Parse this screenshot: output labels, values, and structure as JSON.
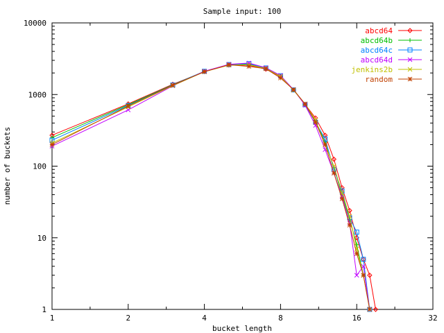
{
  "chart_data": {
    "type": "line",
    "title": "Sample input: 100",
    "xlabel": "bucket length",
    "ylabel": "number of buckets",
    "xscale": "log2",
    "yscale": "log10",
    "xlim": [
      1,
      32
    ],
    "ylim": [
      1,
      10000
    ],
    "xticks": [
      1,
      2,
      4,
      8,
      16,
      32
    ],
    "yticks": [
      1,
      10,
      100,
      1000,
      10000
    ],
    "grid": false,
    "legend_position": "top-right",
    "series": [
      {
        "name": "abcd64",
        "color": "#ff0000",
        "marker": "diamond",
        "x": [
          1,
          2,
          3,
          4,
          5,
          6,
          7,
          8,
          9,
          10,
          11,
          12,
          13,
          14,
          15,
          16,
          17,
          18,
          19
        ],
        "y": [
          270,
          740,
          1390,
          2090,
          2580,
          2560,
          2260,
          1780,
          1160,
          730,
          470,
          270,
          125,
          50,
          24,
          10,
          5,
          3,
          1
        ]
      },
      {
        "name": "abcd64b",
        "color": "#00c000",
        "marker": "plus",
        "x": [
          1,
          2,
          3,
          4,
          5,
          6,
          7,
          8,
          9,
          10,
          11,
          12,
          13,
          14,
          15,
          16,
          17
        ],
        "y": [
          250,
          720,
          1370,
          2100,
          2600,
          2630,
          2320,
          1800,
          1170,
          720,
          420,
          220,
          95,
          40,
          18,
          8,
          3
        ]
      },
      {
        "name": "abcd64c",
        "color": "#0080ff",
        "marker": "square",
        "x": [
          1,
          2,
          3,
          4,
          5,
          6,
          7,
          8,
          9,
          10,
          11,
          12,
          13,
          14,
          15,
          16,
          17,
          18
        ],
        "y": [
          230,
          700,
          1360,
          2110,
          2620,
          2700,
          2350,
          1830,
          1160,
          720,
          410,
          240,
          90,
          45,
          19,
          12,
          5,
          1
        ]
      },
      {
        "name": "abcd64d",
        "color": "#c000ff",
        "marker": "cross",
        "x": [
          1,
          2,
          3,
          4,
          5,
          6,
          7,
          8,
          9,
          10,
          11,
          12,
          13,
          14,
          15,
          16,
          17,
          18
        ],
        "y": [
          190,
          610,
          1320,
          2110,
          2640,
          2750,
          2370,
          1840,
          1170,
          710,
          370,
          170,
          80,
          38,
          16,
          3,
          4,
          1
        ]
      },
      {
        "name": "jenkins2b",
        "color": "#c0c000",
        "marker": "cross",
        "x": [
          1,
          2,
          3,
          4,
          5,
          6,
          7,
          8,
          9,
          10,
          11,
          12,
          13,
          14,
          15,
          16,
          17,
          18
        ],
        "y": [
          210,
          670,
          1330,
          2080,
          2570,
          2600,
          2310,
          1790,
          1150,
          740,
          440,
          200,
          100,
          42,
          20,
          7,
          3,
          1
        ]
      },
      {
        "name": "random",
        "color": "#c04000",
        "marker": "star",
        "x": [
          1,
          2,
          3,
          4,
          5,
          6,
          7,
          8,
          9,
          10,
          11,
          12,
          13,
          14,
          15,
          16,
          17,
          18
        ],
        "y": [
          200,
          690,
          1350,
          2080,
          2600,
          2470,
          2290,
          1700,
          1170,
          740,
          410,
          200,
          80,
          35,
          15,
          6,
          3,
          1
        ]
      }
    ]
  }
}
